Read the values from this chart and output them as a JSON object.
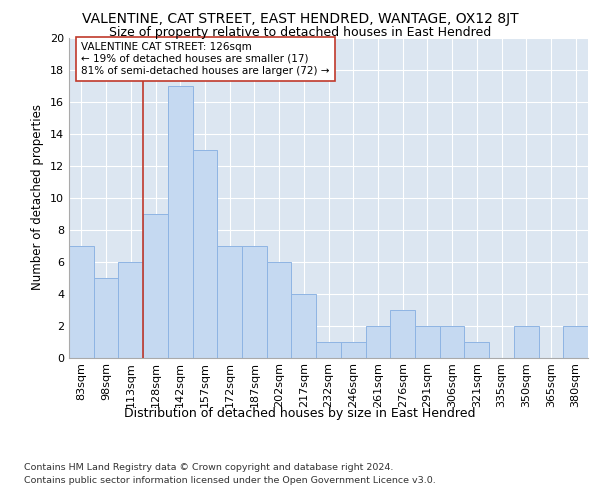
{
  "title": "VALENTINE, CAT STREET, EAST HENDRED, WANTAGE, OX12 8JT",
  "subtitle": "Size of property relative to detached houses in East Hendred",
  "xlabel": "Distribution of detached houses by size in East Hendred",
  "ylabel": "Number of detached properties",
  "footer1": "Contains HM Land Registry data © Crown copyright and database right 2024.",
  "footer2": "Contains public sector information licensed under the Open Government Licence v3.0.",
  "categories": [
    "83sqm",
    "98sqm",
    "113sqm",
    "128sqm",
    "142sqm",
    "157sqm",
    "172sqm",
    "187sqm",
    "202sqm",
    "217sqm",
    "232sqm",
    "246sqm",
    "261sqm",
    "276sqm",
    "291sqm",
    "306sqm",
    "321sqm",
    "335sqm",
    "350sqm",
    "365sqm",
    "380sqm"
  ],
  "values": [
    7,
    5,
    6,
    9,
    17,
    13,
    7,
    7,
    6,
    4,
    1,
    1,
    2,
    3,
    2,
    2,
    1,
    0,
    2,
    0,
    2
  ],
  "bar_color": "#c5d9f1",
  "bar_edge_color": "#8eb4e3",
  "highlight_index": 3,
  "highlight_line_color": "#c0392b",
  "annotation_text": "VALENTINE CAT STREET: 126sqm\n← 19% of detached houses are smaller (17)\n81% of semi-detached houses are larger (72) →",
  "annotation_box_color": "#ffffff",
  "annotation_box_edge": "#c0392b",
  "ylim": [
    0,
    20
  ],
  "yticks": [
    0,
    2,
    4,
    6,
    8,
    10,
    12,
    14,
    16,
    18,
    20
  ],
  "background_color": "#ffffff",
  "plot_bg_color": "#dce6f1",
  "grid_color": "#ffffff",
  "title_fontsize": 10,
  "subtitle_fontsize": 9,
  "tick_fontsize": 8,
  "ylabel_fontsize": 8.5,
  "xlabel_fontsize": 9,
  "footer_fontsize": 6.8
}
